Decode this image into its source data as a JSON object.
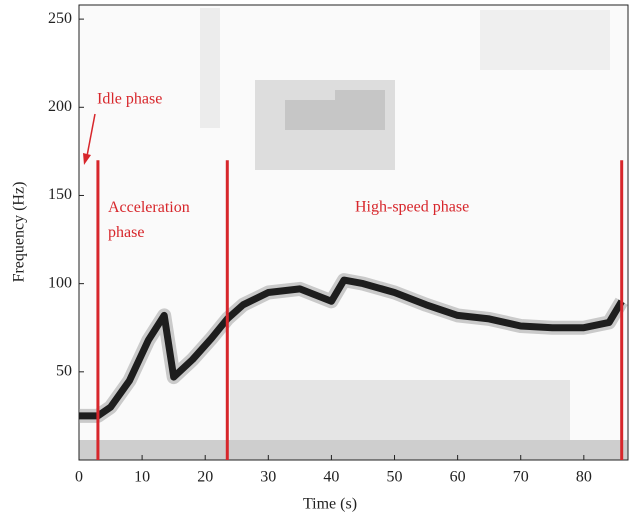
{
  "chart_data": {
    "type": "line",
    "x_label": "Time (s)",
    "y_label": "Frequency (Hz)",
    "x": [
      0,
      3,
      5,
      8,
      11,
      13.5,
      15,
      18,
      21,
      23.5,
      26,
      30,
      35,
      40,
      42,
      45,
      50,
      55,
      60,
      65,
      70,
      75,
      80,
      84,
      86
    ],
    "values": [
      25,
      25,
      30,
      45,
      68,
      82,
      47,
      57,
      69,
      80,
      88,
      95,
      97,
      90,
      102,
      100,
      95,
      88,
      82,
      80,
      76,
      75,
      75,
      78,
      90
    ],
    "color": "#1e1e1e",
    "xlim": [
      0,
      87
    ],
    "ylim": [
      0,
      258
    ],
    "xticks": [
      0,
      10,
      20,
      30,
      40,
      50,
      60,
      70,
      80
    ],
    "yticks": [
      50,
      100,
      150,
      200,
      250
    ],
    "phase_lines": {
      "x": [
        3,
        23.5,
        86
      ],
      "ymax": 170,
      "color": "#d7262b"
    },
    "annotations": [
      {
        "text": "Idle phase",
        "color": "#d7262b"
      },
      {
        "text": "Acceleration phase",
        "color": "#d7262b"
      },
      {
        "text": "High-speed phase",
        "color": "#d7262b"
      }
    ]
  }
}
